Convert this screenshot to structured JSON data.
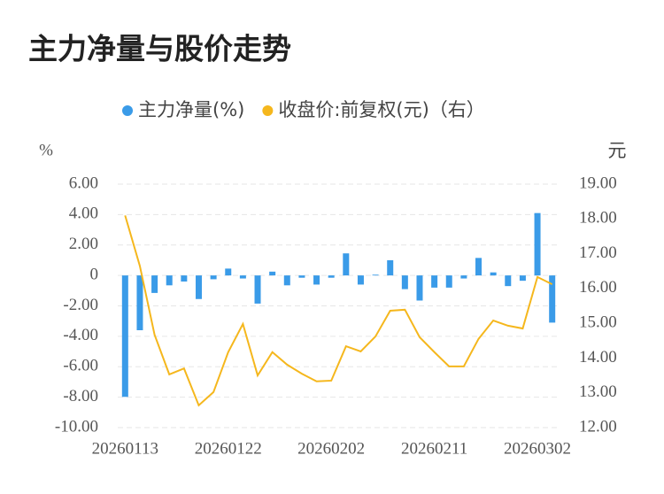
{
  "chart_data": {
    "type": "bar_line",
    "title": "主力净量与股价走势",
    "y_label": "%",
    "y2_label": "元",
    "categories": [
      "20260113",
      null,
      null,
      null,
      null,
      null,
      null,
      "20260122",
      null,
      null,
      null,
      null,
      null,
      null,
      "20260202",
      null,
      null,
      null,
      null,
      null,
      null,
      "20260211",
      null,
      null,
      null,
      null,
      null,
      null,
      "20260302",
      null
    ],
    "series": [
      {
        "name": "主力净量(%)",
        "type": "bar",
        "color": "#3a9be8",
        "values": [
          -7.98,
          -3.6,
          -1.15,
          -0.65,
          -0.4,
          -1.55,
          -0.25,
          0.45,
          -0.2,
          -1.85,
          0.25,
          -0.65,
          -0.15,
          -0.6,
          -0.15,
          1.45,
          -0.6,
          0.05,
          1.0,
          -0.9,
          -1.65,
          -0.8,
          -0.8,
          -0.2,
          1.15,
          0.2,
          -0.7,
          -0.35,
          4.1,
          -3.1
        ]
      },
      {
        "name": "收盘价:前复权(元)（右）",
        "type": "line",
        "axis": "y2",
        "color": "#f5b71d",
        "values": [
          18.1,
          16.65,
          14.67,
          13.53,
          13.7,
          12.64,
          13.02,
          14.17,
          14.98,
          13.5,
          14.17,
          13.81,
          13.55,
          13.33,
          13.35,
          14.34,
          14.19,
          14.62,
          15.36,
          15.39,
          14.6,
          14.17,
          13.76,
          13.76,
          14.55,
          15.08,
          14.93,
          14.85,
          16.33,
          16.12
        ]
      }
    ],
    "ylim": [
      -10,
      6
    ],
    "yticks": [
      {
        "value": -10,
        "label": "-10.00"
      },
      {
        "value": -8,
        "label": "-8.00"
      },
      {
        "value": -6,
        "label": "-6.00"
      },
      {
        "value": -4,
        "label": "-4.00"
      },
      {
        "value": -2,
        "label": "-2.00"
      },
      0,
      {
        "value": 2,
        "label": "2.00"
      },
      {
        "value": 4,
        "label": "4.00"
      },
      {
        "value": 6,
        "label": "6.00"
      }
    ],
    "y2lim": [
      12,
      19
    ],
    "y2ticks": [
      {
        "value": 12,
        "label": "12.00"
      },
      {
        "value": 13,
        "label": "13.00"
      },
      {
        "value": 14,
        "label": "14.00"
      },
      {
        "value": 15,
        "label": "15.00"
      },
      {
        "value": 16,
        "label": "16.00"
      },
      {
        "value": 17,
        "label": "17.00"
      },
      {
        "value": 18,
        "label": "18.00"
      },
      {
        "value": 19,
        "label": "19.00"
      }
    ],
    "grid": true
  }
}
